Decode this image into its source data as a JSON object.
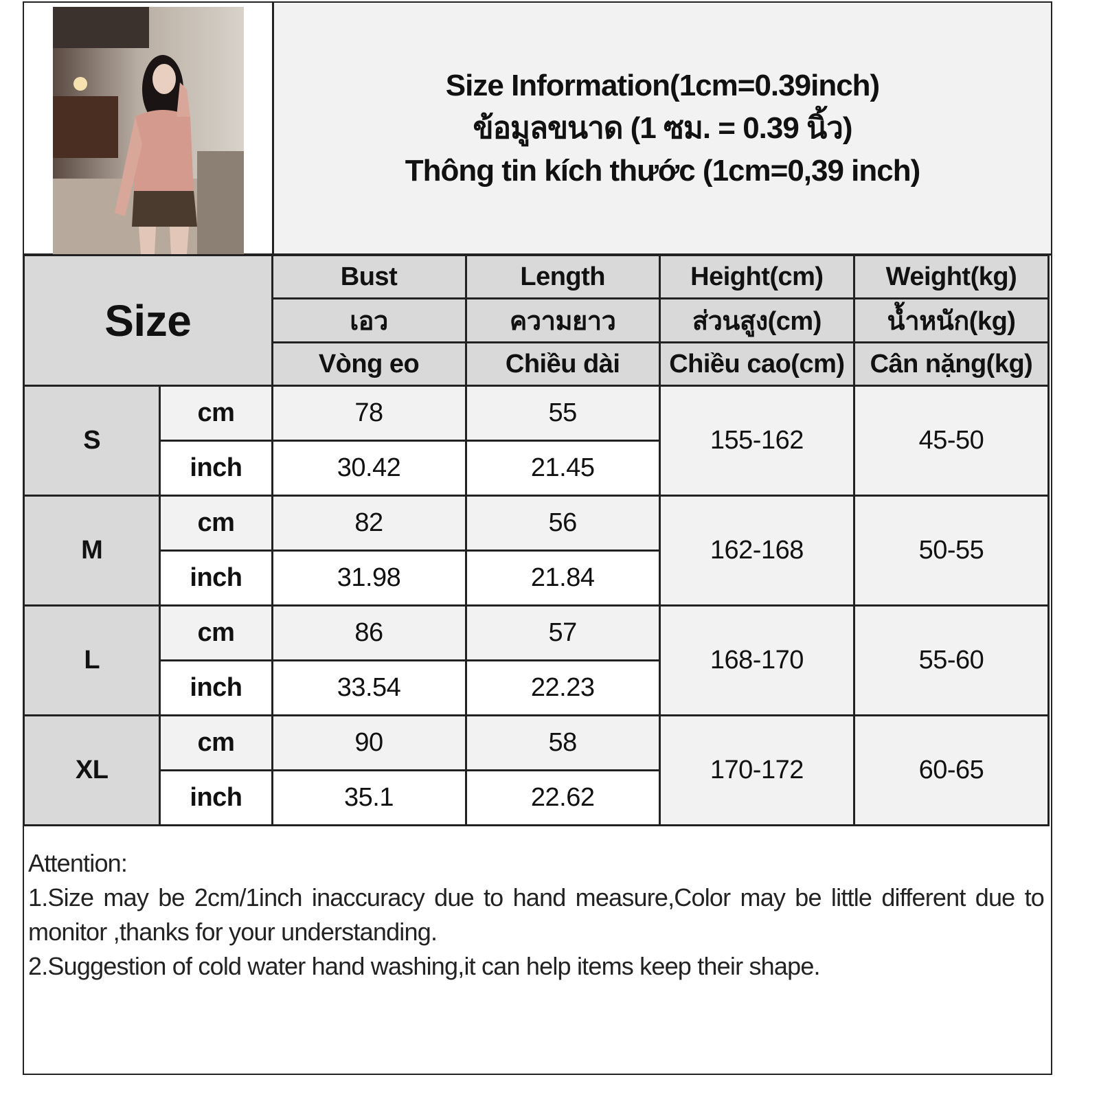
{
  "title": {
    "line_en": "Size Information(1cm=0.39inch)",
    "line_th": "ข้อมูลขนาด (1 ซม. = 0.39 นิ้ว)",
    "line_vi": "Thông tin kích thước (1cm=0,39 inch)"
  },
  "table": {
    "size_header": "Size",
    "columns": [
      {
        "en": "Bust",
        "th": "เอว",
        "vi": "Vòng eo"
      },
      {
        "en": "Length",
        "th": "ความยาว",
        "vi": "Chiều dài"
      },
      {
        "en": "Height(cm)",
        "th": "ส่วนสูง(cm)",
        "vi": "Chiều cao(cm)"
      },
      {
        "en": "Weight(kg)",
        "th": "น้ำหนัก(kg)",
        "vi": "Cân nặng(kg)"
      }
    ],
    "unit_cm": "cm",
    "unit_inch": "inch",
    "rows": [
      {
        "size": "S",
        "bust_cm": "78",
        "length_cm": "55",
        "bust_inch": "30.42",
        "length_inch": "21.45",
        "height": "155-162",
        "weight": "45-50"
      },
      {
        "size": "M",
        "bust_cm": "82",
        "length_cm": "56",
        "bust_inch": "31.98",
        "length_inch": "21.84",
        "height": "162-168",
        "weight": "50-55"
      },
      {
        "size": "L",
        "bust_cm": "86",
        "length_cm": "57",
        "bust_inch": "33.54",
        "length_inch": "22.23",
        "height": "168-170",
        "weight": "55-60"
      },
      {
        "size": "XL",
        "bust_cm": "90",
        "length_cm": "58",
        "bust_inch": "35.1",
        "length_inch": "22.62",
        "height": "170-172",
        "weight": "60-65"
      }
    ]
  },
  "attention": {
    "heading": "Attention:",
    "note1": "1.Size may be 2cm/1inch inaccuracy due to hand measure,Color may be little different due to monitor ,thanks for your understanding.",
    "note2": "2.Suggestion of cold water hand washing,it can help items keep their shape."
  },
  "colors": {
    "header_bg": "#d9d9d9",
    "alt_row_bg": "#f2f2f2",
    "border": "#222222"
  }
}
